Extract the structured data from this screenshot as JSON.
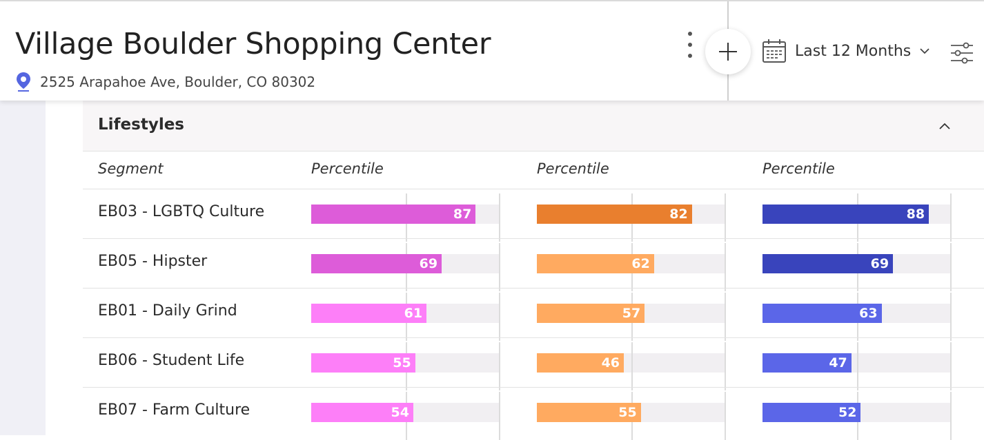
{
  "header": {
    "title": "Village Boulder Shopping Center",
    "address": "2525 Arapahoe Ave, Boulder, CO 80302",
    "date_range": "Last 12 Months"
  },
  "section": {
    "title": "Lifestyles",
    "columns": [
      "Segment",
      "Percentile",
      "Percentile",
      "Percentile"
    ]
  },
  "rows": [
    {
      "segment": "EB03 - LGBTQ Culture",
      "values": [
        87,
        82,
        88
      ],
      "colors": [
        "#dd5cd9",
        "#e97f2e",
        "#3944bc"
      ]
    },
    {
      "segment": "EB05 - Hipster",
      "values": [
        69,
        62,
        69
      ],
      "colors": [
        "#dd5cd9",
        "#ffaa60",
        "#3944bc"
      ]
    },
    {
      "segment": "EB01 - Daily Grind",
      "values": [
        61,
        57,
        63
      ],
      "colors": [
        "#fd7ff8",
        "#ffaa60",
        "#5b66e8"
      ]
    },
    {
      "segment": "EB06 - Student Life",
      "values": [
        55,
        46,
        47
      ],
      "colors": [
        "#fd7ff8",
        "#ffaa60",
        "#5b66e8"
      ]
    },
    {
      "segment": "EB07 - Farm Culture",
      "values": [
        54,
        55,
        52
      ],
      "colors": [
        "#fd7ff8",
        "#ffaa60",
        "#5b66e8"
      ]
    }
  ],
  "icons": {
    "location": "location-pin-icon",
    "more": "kebab-menu-icon",
    "add": "plus-icon",
    "calendar": "calendar-icon",
    "dropdown": "chevron-down-icon",
    "filters": "sliders-icon",
    "collapse": "chevron-up-icon"
  },
  "colors": {
    "pin": "#5566e0",
    "track": "#f1eff2"
  }
}
